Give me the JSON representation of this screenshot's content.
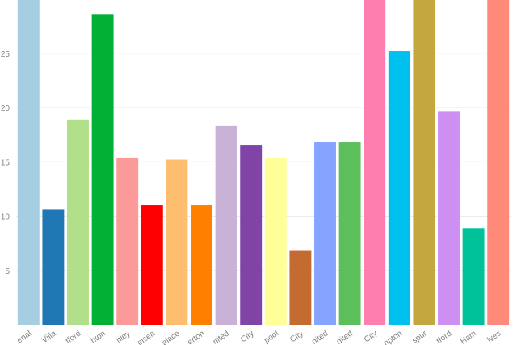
{
  "chart_data": {
    "type": "bar",
    "title": "",
    "xlabel": "",
    "ylabel": "",
    "ylim": [
      0,
      30
    ],
    "yticks": [
      5,
      10,
      15,
      20,
      25
    ],
    "grid": true,
    "categories": [
      "enal",
      "Villa",
      "tford",
      "hton",
      "nley",
      "elsea",
      "alace",
      "erton",
      "nited",
      "City",
      "pool",
      "City",
      "nited",
      "nited",
      "City",
      "npton",
      "spur",
      "tford",
      "Ham",
      "lves"
    ],
    "values": [
      31,
      10.6,
      18.9,
      28.6,
      15.4,
      11.0,
      15.2,
      11.0,
      18.3,
      16.5,
      15.4,
      6.8,
      16.8,
      16.8,
      31,
      25.2,
      31,
      19.6,
      8.9,
      31
    ],
    "colors": [
      "#a6cee3",
      "#1f78b4",
      "#b2df8a",
      "#00b135",
      "#fb9a99",
      "#ff0000",
      "#fdbf6f",
      "#ff8000",
      "#cab2d6",
      "#7f44a6",
      "#ffff99",
      "#c36b30",
      "#85a4ff",
      "#5cbf5c",
      "#ff7eb0",
      "#00c0ed",
      "#c4a83e",
      "#cd8ff2",
      "#00c299",
      "#ff8a7a"
    ]
  }
}
